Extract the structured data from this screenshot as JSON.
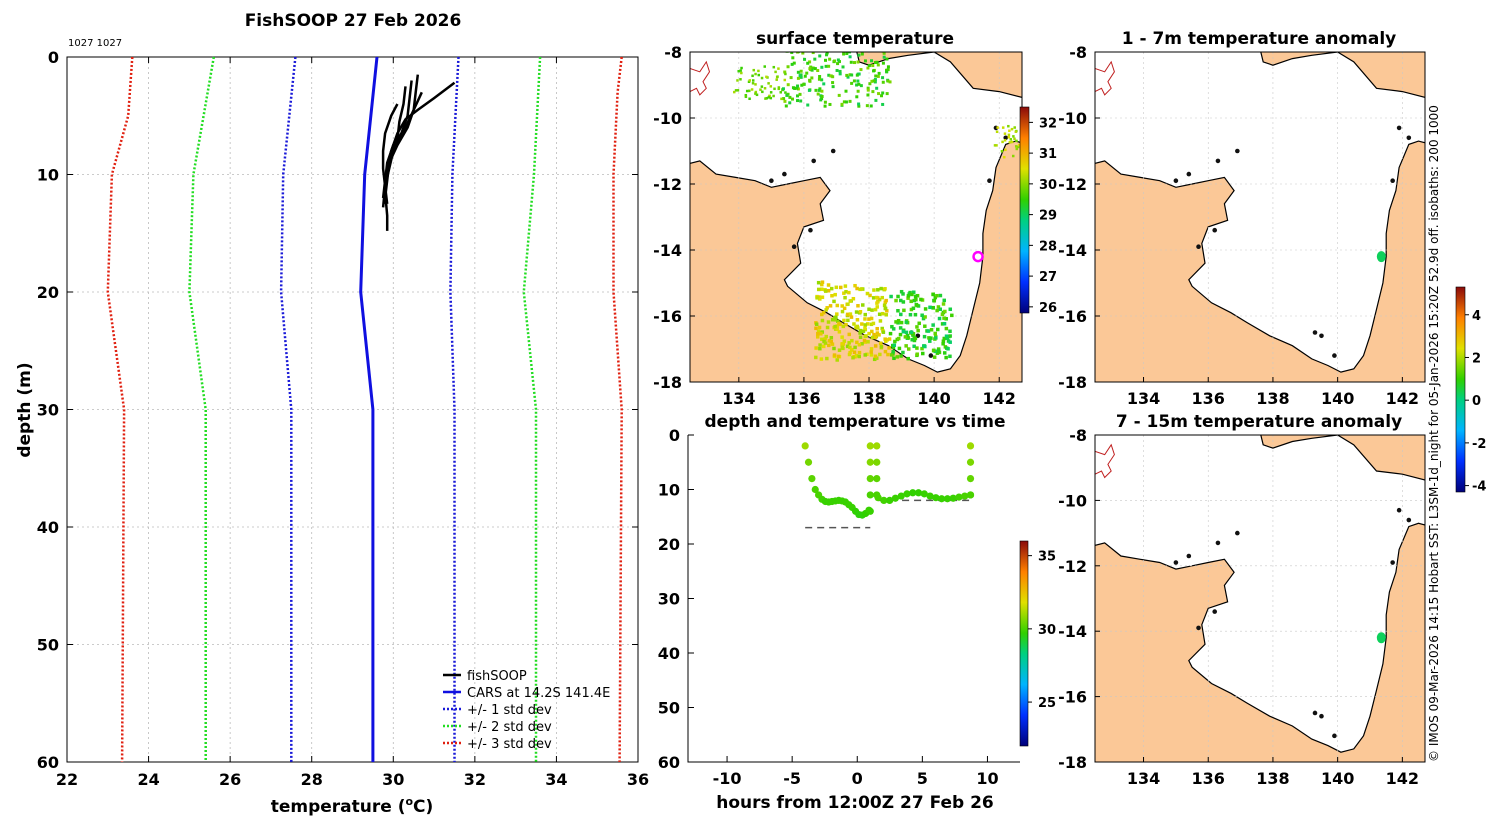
{
  "colors": {
    "cars": "#1010e0",
    "std1": "#1a1ad8",
    "std2": "#22dd22",
    "std3": "#e02010",
    "fishsoop": "#000000",
    "land": "#fbc897",
    "marker": "#ff00ff"
  },
  "chart_data": [
    {
      "id": "profile",
      "type": "line",
      "title": "FishSOOP 27 Feb 2026",
      "subtitle": "1027 1027",
      "xlabel_main": "temperature (",
      "xlabel_sup": "o",
      "xlabel_end": "C)",
      "ylabel": "depth (m)",
      "xlim": [
        22,
        36
      ],
      "ylim": [
        60,
        0
      ],
      "xticks": [
        22,
        24,
        26,
        28,
        30,
        32,
        34,
        36
      ],
      "yticks": [
        0,
        10,
        20,
        30,
        40,
        50,
        60
      ],
      "legend": [
        "fishSOOP",
        "CARS at 14.2S 141.4E",
        "+/- 1 std dev",
        "+/- 2 std dev",
        "+/- 3 std dev"
      ],
      "legend_position": "bottom-right",
      "cars": {
        "depth": [
          0,
          10,
          20,
          30,
          60
        ],
        "temp": [
          29.6,
          29.3,
          29.2,
          29.5,
          29.5
        ]
      },
      "std1_left": {
        "depth": [
          0,
          10,
          20,
          30,
          60
        ],
        "temp": [
          27.6,
          27.3,
          27.25,
          27.5,
          27.5
        ]
      },
      "std1_right": {
        "depth": [
          0,
          10,
          20,
          30,
          60
        ],
        "temp": [
          31.6,
          31.45,
          31.4,
          31.5,
          31.5
        ]
      },
      "std2_left": {
        "depth": [
          0,
          10,
          20,
          30,
          60
        ],
        "temp": [
          25.6,
          25.1,
          25.0,
          25.4,
          25.4
        ]
      },
      "std2_right": {
        "depth": [
          0,
          10,
          20,
          30,
          60
        ],
        "temp": [
          33.6,
          33.45,
          33.2,
          33.5,
          33.5
        ]
      },
      "std3_left": {
        "depth": [
          0,
          5,
          10,
          20,
          30,
          60
        ],
        "temp": [
          23.6,
          23.5,
          23.1,
          23.0,
          23.4,
          23.35
        ]
      },
      "std3_right": {
        "depth": [
          0,
          3,
          10,
          20,
          30,
          60
        ],
        "temp": [
          35.6,
          35.5,
          35.4,
          35.4,
          35.6,
          35.55
        ]
      },
      "fishsoop_profiles": [
        {
          "depth": [
            2.2,
            3.5,
            4.5,
            5.3,
            6.5,
            8,
            9.5,
            11,
            12.5
          ],
          "temp": [
            31.5,
            31.0,
            30.6,
            30.3,
            30.1,
            29.95,
            29.85,
            29.8,
            29.85
          ]
        },
        {
          "depth": [
            1.5,
            3,
            4.5,
            6,
            7.5,
            9,
            10.5,
            12
          ],
          "temp": [
            30.6,
            30.55,
            30.5,
            30.35,
            30.1,
            29.9,
            29.85,
            29.8
          ]
        },
        {
          "depth": [
            2,
            3.5,
            5,
            6.5,
            8,
            9.5,
            11,
            12.8
          ],
          "temp": [
            30.45,
            30.4,
            30.35,
            30.2,
            30.0,
            29.9,
            29.8,
            29.75
          ]
        },
        {
          "depth": [
            2.5,
            4,
            5.5,
            7,
            8.5,
            10,
            11.5,
            13.5,
            14.8
          ],
          "temp": [
            30.3,
            30.25,
            30.15,
            30.1,
            29.95,
            29.85,
            29.8,
            29.85,
            29.85
          ]
        },
        {
          "depth": [
            3,
            4.5,
            6,
            7.5,
            9,
            10.5,
            12
          ],
          "temp": [
            30.7,
            30.5,
            30.3,
            30.0,
            29.85,
            29.8,
            29.75
          ]
        },
        {
          "depth": [
            4,
            5,
            6.5,
            8,
            9.5,
            11,
            12.5
          ],
          "temp": [
            30.1,
            29.95,
            29.8,
            29.75,
            29.75,
            29.8,
            29.8
          ]
        }
      ]
    },
    {
      "id": "depth_time",
      "type": "scatter",
      "title": "depth and temperature vs time",
      "xlabel": "hours from 12:00Z 27 Feb 26",
      "xlim": [
        -13,
        12.5
      ],
      "ylim": [
        60,
        0
      ],
      "xticks": [
        -10,
        -5,
        0,
        5,
        10
      ],
      "yticks": [
        0,
        10,
        20,
        30,
        40,
        50,
        60
      ],
      "color_scale": {
        "min": 22,
        "max": 36,
        "ticks": [
          25,
          30,
          35
        ]
      },
      "segment1": {
        "t_start": -4.0,
        "t_end": 0.9,
        "depth": [
          2,
          5,
          8,
          10,
          11,
          11.8,
          12.2,
          12.3,
          12.2,
          12.1,
          12.0,
          12.1,
          12.3,
          12.8,
          13.3,
          14,
          14.6,
          14.7,
          14.4,
          13.8
        ],
        "temp": [
          31,
          30.5,
          30.2,
          30,
          30,
          29.9,
          29.8,
          29.8,
          29.8,
          29.8,
          29.8,
          29.8,
          29.8,
          29.8,
          29.8,
          29.7,
          29.6,
          29.6,
          29.7,
          29.8
        ]
      },
      "spike1": {
        "t": 1.0,
        "depth": [
          14,
          11,
          8,
          5,
          2
        ],
        "temp": [
          29.8,
          30,
          30.3,
          30.7,
          31
        ]
      },
      "spike2": {
        "t": 1.5,
        "depth": [
          2,
          5,
          8,
          11
        ],
        "temp": [
          31,
          30.6,
          30.2,
          30
        ]
      },
      "segment2": {
        "t_start": 1.6,
        "t_end": 8.7,
        "depth": [
          11.5,
          12.0,
          12.0,
          11.6,
          11.2,
          10.8,
          10.6,
          10.6,
          10.8,
          11.2,
          11.5,
          11.7,
          11.7,
          11.6,
          11.4,
          11.2,
          11.0
        ],
        "temp": [
          30,
          29.9,
          29.8,
          29.8,
          29.8,
          29.8,
          29.7,
          29.7,
          29.8,
          29.8,
          29.8,
          29.8,
          29.8,
          29.8,
          29.9,
          30,
          30
        ]
      },
      "spike3": {
        "t": 8.7,
        "depth": [
          11,
          8,
          5,
          2
        ],
        "temp": [
          30,
          30.3,
          30.6,
          31
        ]
      },
      "bottom_dashed": [
        {
          "t_start": -4.0,
          "t_end": 1.0,
          "depth": 17
        },
        {
          "t_start": 1.6,
          "t_end": 8.7,
          "depth": 12
        }
      ]
    },
    {
      "id": "sst_map",
      "type": "heatmap",
      "title": "surface temperature",
      "xlim": [
        132.5,
        142.7
      ],
      "ylim": [
        -18,
        -8
      ],
      "xticks": [
        134,
        136,
        138,
        140,
        142
      ],
      "yticks": [
        -8,
        -10,
        -12,
        -14,
        -16,
        -18
      ],
      "color_scale": {
        "min": 25.8,
        "max": 32.5,
        "ticks": [
          26,
          27,
          28,
          29,
          30,
          31,
          32
        ]
      },
      "marker": {
        "lon": 141.35,
        "lat": -14.2
      }
    },
    {
      "id": "anom_shallow",
      "type": "heatmap",
      "title": "1 - 7m temperature anomaly",
      "xlim": [
        132.5,
        142.7
      ],
      "ylim": [
        -18,
        -8
      ],
      "xticks": [
        134,
        136,
        138,
        140,
        142
      ],
      "yticks": [
        -8,
        -10,
        -12,
        -14,
        -16,
        -18
      ],
      "marker": {
        "lon": 141.35,
        "lat": -14.2,
        "anomaly": 0.3
      }
    },
    {
      "id": "anom_deep",
      "type": "heatmap",
      "title": "7 - 15m temperature anomaly",
      "xlim": [
        132.5,
        142.7
      ],
      "ylim": [
        -18,
        -8
      ],
      "xticks": [
        134,
        136,
        138,
        140,
        142
      ],
      "yticks": [
        -8,
        -10,
        -12,
        -14,
        -16,
        -18
      ],
      "marker": {
        "lon": 141.35,
        "lat": -14.2,
        "anomaly": 0.3
      }
    },
    {
      "id": "anomaly_colorbar",
      "type": "heatmap",
      "color_scale": {
        "min": -4.3,
        "max": 5.3,
        "ticks": [
          -4,
          -2,
          0,
          2,
          4
        ]
      }
    }
  ],
  "credit": "© IMOS 09-Mar-2026 14:15 Hobart SST: L3SM-1d_night for 05-Jan-2026 15:20Z 52.9d off. isobaths: 200  1000"
}
